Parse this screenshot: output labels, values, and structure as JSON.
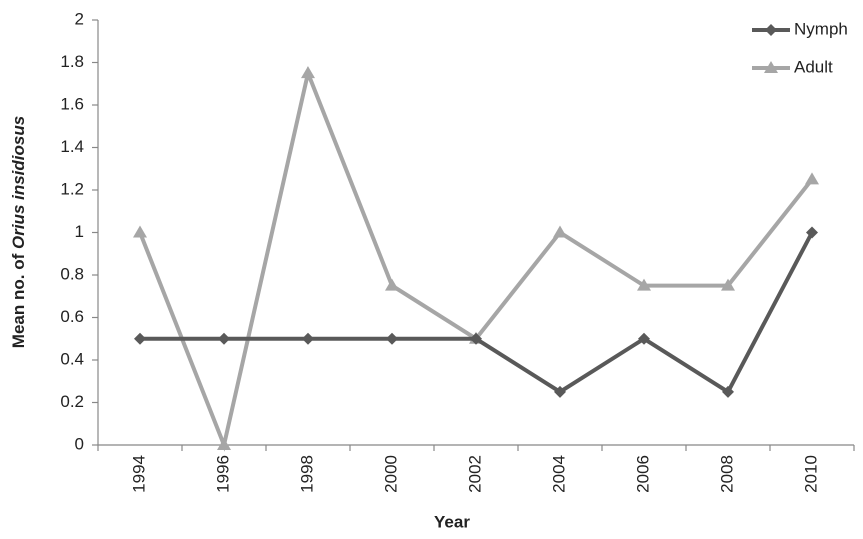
{
  "chart_data": {
    "type": "line",
    "xlabel": "Year",
    "ylabel": "Mean no. of",
    "ylabel_italic": "Orius insidiosus",
    "categories": [
      "1994",
      "1996",
      "1998",
      "2000",
      "2002",
      "2004",
      "2006",
      "2008",
      "2010"
    ],
    "series": [
      {
        "name": "Nymph",
        "color": "#595959",
        "marker": "diamond",
        "values": [
          0.5,
          0.5,
          0.5,
          0.5,
          0.5,
          0.25,
          0.5,
          0.25,
          1
        ]
      },
      {
        "name": "Adult",
        "color": "#a6a6a6",
        "marker": "triangle",
        "values": [
          1,
          0,
          1.75,
          0.75,
          0.5,
          1,
          0.75,
          0.75,
          1.25
        ]
      }
    ],
    "ylim": [
      0,
      2
    ],
    "yticks": [
      0,
      0.2,
      0.4,
      0.6,
      0.8,
      1,
      1.2,
      1.4,
      1.6,
      1.8,
      2
    ],
    "grid": false,
    "legend": "upper right"
  }
}
